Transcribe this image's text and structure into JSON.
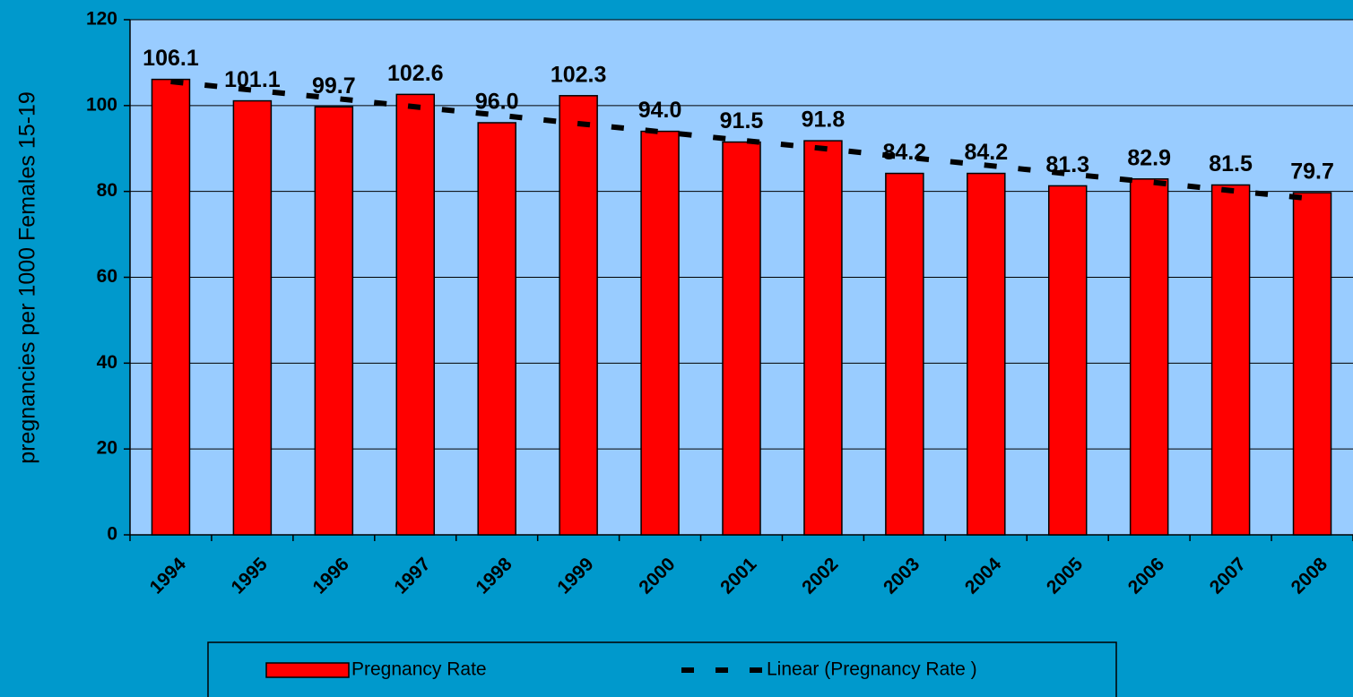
{
  "chart_data": {
    "type": "bar",
    "y_label": "pregnancies per 1000 Females 15-19",
    "categories": [
      "1994",
      "1995",
      "1996",
      "1997",
      "1998",
      "1999",
      "2000",
      "2001",
      "2002",
      "2003",
      "2004",
      "2005",
      "2006",
      "2007",
      "2008"
    ],
    "series": [
      {
        "name": "Pregnancy Rate",
        "type": "bar",
        "color": "#ff0000",
        "values": [
          106.1,
          101.1,
          99.7,
          102.6,
          96.0,
          102.3,
          94.0,
          91.5,
          91.8,
          84.2,
          84.2,
          81.3,
          82.9,
          81.5,
          79.7
        ],
        "value_labels": [
          "106.1",
          "101.1",
          "99.7",
          "102.6",
          "96.0",
          "102.3",
          "94.0",
          "91.5",
          "91.8",
          "84.2",
          "84.2",
          "81.3",
          "82.9",
          "81.5",
          "79.7"
        ]
      },
      {
        "name": "Linear (Pregnancy Rate )",
        "type": "line",
        "dashed": true,
        "color": "#000000",
        "values": [
          105.6,
          103.6,
          101.7,
          99.7,
          97.8,
          95.8,
          93.9,
          91.9,
          90.0,
          88.0,
          86.1,
          84.1,
          82.2,
          80.2,
          78.3
        ]
      }
    ],
    "ylim": [
      0,
      120
    ],
    "yticks": [
      0,
      20,
      40,
      60,
      80,
      100,
      120
    ],
    "grid": true,
    "legend": "bottom"
  }
}
